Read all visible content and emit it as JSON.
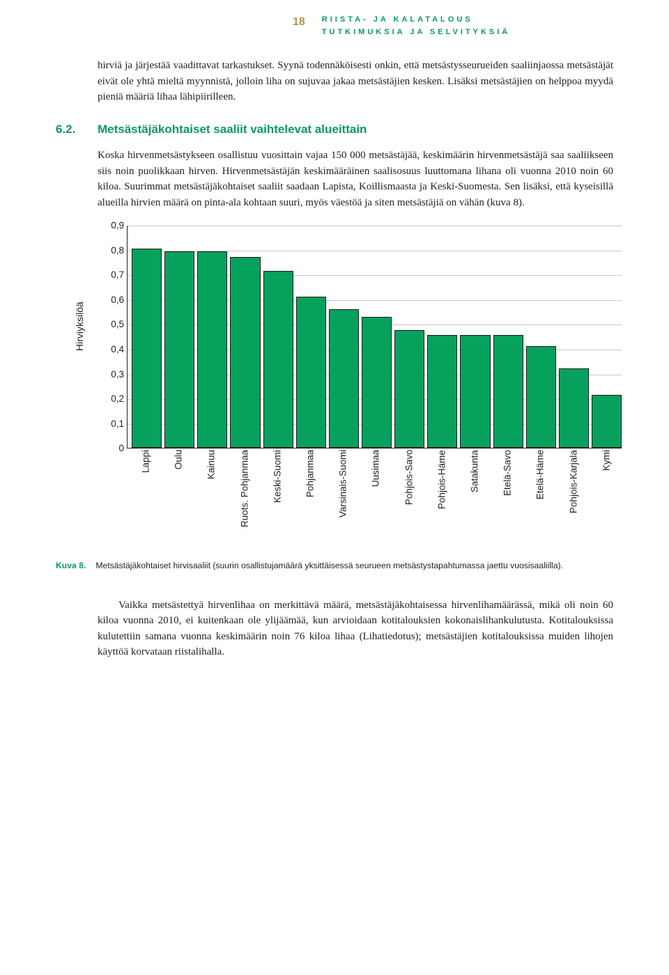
{
  "header": {
    "page_number": "18",
    "line1": "RIISTA- JA KALATALOUS",
    "line2": "TUTKIMUKSIA JA SELVITYKSIÄ"
  },
  "para_intro": "hirviä ja järjestää vaadittavat tarkastukset. Syynä todennäköisesti onkin, että metsästysseurueiden saaliinjaossa metsästäjät eivät ole yhtä mieltä myynnistä, jolloin liha on sujuvaa jakaa metsästäjien kesken. Lisäksi metsästäjien on helppoa myydä pieniä määriä lihaa lähipiirilleen.",
  "section": {
    "number": "6.2.",
    "title": "Metsästäjäkohtaiset saaliit vaihtelevat alueittain"
  },
  "para_main": "Koska hirvenmetsästykseen osallistuu vuosittain vajaa 150 000 metsästäjää, keskimäärin hirvenmetsästäjä saa saaliikseen siis noin puolikkaan hirven. Hirvenmetsästäjän keskimääräinen saalisosuus luuttomana lihana oli vuonna 2010 noin 60 kiloa. Suurimmat metsästäjäkohtaiset saaliit saadaan Lapista, Koillismaasta ja Keski-Suomesta. Sen lisäksi, että kyseisillä alueilla hirvien määrä on pinta-ala kohtaan suuri, myös väestöä ja siten metsästäjiä on vähän (kuva 8).",
  "chart": {
    "y_axis_label": "Hirviyksilöä",
    "bar_color": "#07a15e",
    "y_min": 0,
    "y_max": 0.9,
    "y_tick_step": 0.1,
    "y_ticks": [
      "0",
      "0,1",
      "0,2",
      "0,3",
      "0,4",
      "0,5",
      "0,6",
      "0,7",
      "0,8",
      "0,9"
    ],
    "categories": [
      "Lappi",
      "Oulu",
      "Kainuu",
      "Ruots. Pohjanmaa",
      "Keski-Suomi",
      "Pohjanmaa",
      "Varsinais-Suomi",
      "Uusimaa",
      "Pohjois-Savo",
      "Pohjois-Häme",
      "Satakunta",
      "Etelä-Savo",
      "Etelä-Häme",
      "Pohjois-Karjala",
      "Kymi"
    ],
    "values": [
      0.805,
      0.795,
      0.795,
      0.77,
      0.715,
      0.61,
      0.56,
      0.53,
      0.475,
      0.455,
      0.455,
      0.455,
      0.41,
      0.32,
      0.215
    ]
  },
  "caption": {
    "label": "Kuva 8.",
    "text": "Metsästäjäkohtaiset hirvisaaliit (suurin osallistujamäärä yksittäisessä seurueen metsästystapahtumassa jaettu vuosisaaliilla)."
  },
  "para_end": "Vaikka metsästettyä hirvenlihaa on merkittävä määrä, metsästäjäkohtaisessa hirvenlihamäärässä, mikä oli noin 60 kiloa vuonna 2010, ei kuitenkaan ole ylijäämää, kun arvioidaan kotitalouksien kokonaislihankulutusta. Kotitalouksissa kulutettiin samana vuonna keskimäärin noin 76 kiloa lihaa (Lihatiedotus); metsästäjien kotitalouksissa muiden lihojen käyttöä korvataan riistalihalla."
}
